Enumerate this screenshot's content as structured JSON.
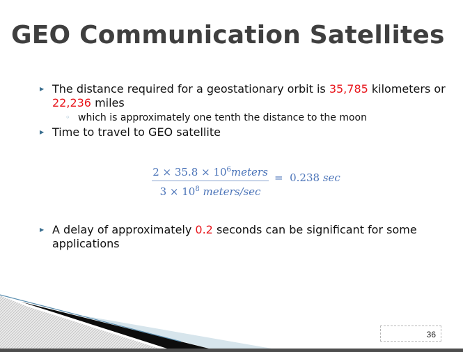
{
  "slide": {
    "title": "GEO Communication Satellites",
    "bullets": {
      "b1_pre": "The distance required for a geostationary orbit is ",
      "b1_km": "35,785",
      "b1_mid": " kilometers or ",
      "b1_mi": "22,236",
      "b1_post": " miles",
      "sub1": "which is approximately one tenth the distance to the moon",
      "b2": "Time to travel to GEO satellite",
      "b3_pre": "A delay of approximately ",
      "b3_val": "0.2",
      "b3_post": " seconds can be significant for some applications"
    },
    "formula": {
      "num_a": "2",
      "times1": "×",
      "num_b": "35.8",
      "times2": "×",
      "num_c_base": "10",
      "num_c_exp": "6",
      "num_unit": "meters",
      "den_a": "3",
      "times3": "×",
      "den_b_base": "10",
      "den_b_exp": "8",
      "den_unit": "meters/sec",
      "equals": "=",
      "result": "0.238",
      "result_unit": "sec"
    },
    "page_number": "36",
    "colors": {
      "title": "#3f3f3f",
      "highlight": "#e8151b",
      "formula": "#4a73b8"
    },
    "icons": {
      "bullet": "triangle-bullet-icon",
      "sub_bullet": "circle-bullet-icon"
    }
  }
}
